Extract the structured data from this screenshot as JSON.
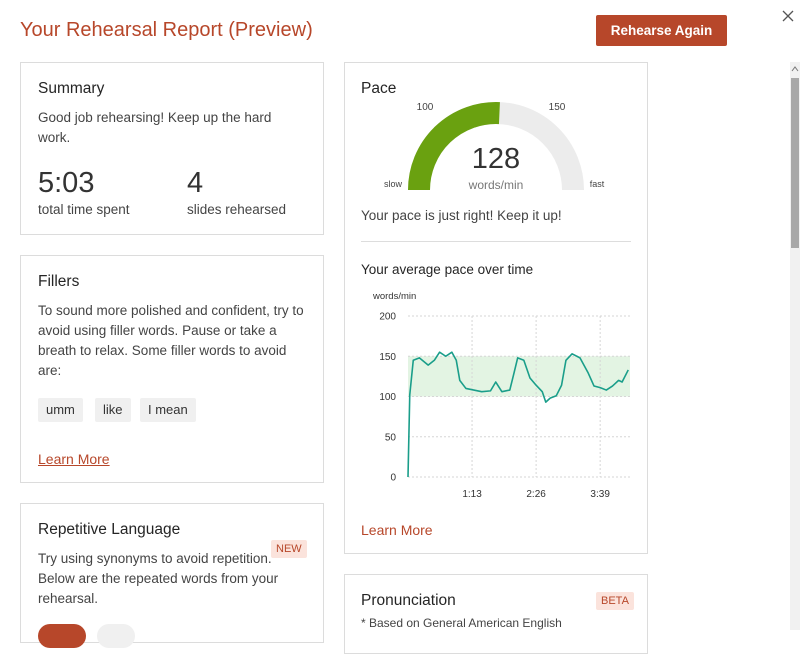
{
  "header": {
    "title": "Your Rehearsal Report (Preview)",
    "button": "Rehearse Again"
  },
  "summary": {
    "title": "Summary",
    "message": "Good job rehearsing! Keep up the hard work.",
    "stats": [
      {
        "value": "5:03",
        "label": "total time spent"
      },
      {
        "value": 4,
        "label": "slides rehearsed"
      }
    ]
  },
  "fillers": {
    "title": "Fillers",
    "text": "To sound more polished and confident, try to avoid using filler words. Pause or take a breath to relax. Some filler words to avoid are:",
    "words": [
      "umm",
      "like",
      "I mean"
    ],
    "link": "Learn More"
  },
  "repetitive": {
    "title": "Repetitive Language",
    "badge": "NEW",
    "text": "Try using synonyms to avoid repetition. Below are the repeated words from your rehearsal."
  },
  "pace": {
    "title": "Pace",
    "gauge": {
      "value": 128,
      "unit": "words/min",
      "ticks": [
        100,
        150
      ],
      "min_label": "slow",
      "max_label": "fast",
      "color": "#6aa110"
    },
    "message": "Your pace is just right! Keep it up!",
    "link": "Learn More"
  },
  "pronunciation": {
    "title": "Pronunciation",
    "badge": "BETA",
    "note": "* Based on General American English"
  },
  "chart_data": {
    "type": "line",
    "title": "Your average pace over time",
    "y_label": "words/min",
    "x": [
      0,
      2,
      6,
      13,
      23,
      30,
      36,
      43,
      50,
      55,
      59,
      66,
      75,
      84,
      94,
      100,
      107,
      116,
      121,
      125,
      132,
      139,
      146,
      153,
      157,
      162,
      169,
      175,
      180,
      187,
      196,
      205,
      212,
      219,
      226,
      233,
      240,
      244,
      251
    ],
    "series": [
      {
        "color": "#1a9e8a",
        "values": [
          0,
          102,
          145,
          148,
          139,
          145,
          155,
          150,
          155,
          145,
          120,
          110,
          108,
          106,
          107,
          118,
          106,
          108,
          130,
          148,
          145,
          123,
          114,
          106,
          93,
          98,
          101,
          114,
          145,
          153,
          148,
          130,
          113,
          111,
          108,
          113,
          120,
          118,
          133
        ]
      }
    ],
    "xlim": [
      0,
      253
    ],
    "xticks": [
      {
        "value": 73,
        "label": "1:13"
      },
      {
        "value": 146,
        "label": "2:26"
      },
      {
        "value": 219,
        "label": "3:39"
      }
    ],
    "ylim": [
      0,
      200
    ],
    "yticks": [
      0,
      50,
      100,
      150,
      200
    ],
    "target_band": [
      100,
      150
    ],
    "band_color": "#e3f4e3",
    "grid": true
  }
}
